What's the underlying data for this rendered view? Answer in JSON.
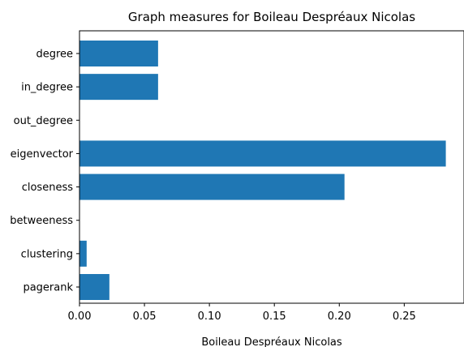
{
  "chart_data": {
    "type": "bar",
    "orientation": "horizontal",
    "title": "Graph measures for Boileau Despréaux Nicolas",
    "xlabel": "Boileau Despréaux Nicolas",
    "ylabel": "",
    "categories": [
      "degree",
      "in_degree",
      "out_degree",
      "eigenvector",
      "closeness",
      "betweeness",
      "clustering",
      "pagerank"
    ],
    "values": [
      0.0605,
      0.0605,
      0.0,
      0.282,
      0.204,
      0.0,
      0.0055,
      0.023
    ],
    "xlim": [
      0.0,
      0.296
    ],
    "xticks": [
      0.0,
      0.05,
      0.1,
      0.15,
      0.2,
      0.25
    ],
    "xtick_labels": [
      "0.00",
      "0.05",
      "0.10",
      "0.15",
      "0.20",
      "0.25"
    ],
    "grid": false,
    "legend": "none",
    "bar_color": "#1f77b4"
  }
}
